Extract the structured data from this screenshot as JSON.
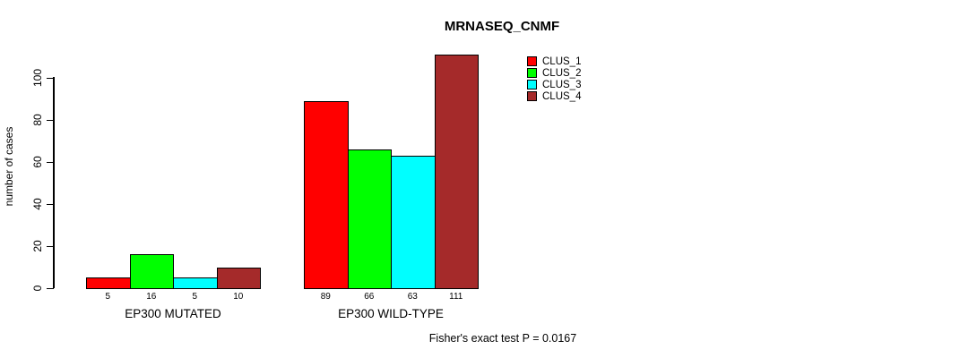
{
  "title": "MRNASEQ_CNMF",
  "ylabel": "number of cases",
  "footnote": "Fisher's exact test P = 0.0167",
  "legend": {
    "position": "top-right",
    "items": [
      {
        "label": "CLUS_1",
        "color": "#FF0000"
      },
      {
        "label": "CLUS_2",
        "color": "#00FF00"
      },
      {
        "label": "CLUS_3",
        "color": "#00FFFF"
      },
      {
        "label": "CLUS_4",
        "color": "#A52A2A"
      }
    ]
  },
  "chart_data": {
    "type": "bar",
    "title": "MRNASEQ_CNMF",
    "xlabel": "",
    "ylabel": "number of cases",
    "categories": [
      "EP300 MUTATED",
      "EP300 WILD-TYPE"
    ],
    "series": [
      {
        "name": "CLUS_1",
        "color": "#FF0000",
        "values": [
          5,
          89
        ]
      },
      {
        "name": "CLUS_2",
        "color": "#00FF00",
        "values": [
          16,
          66
        ]
      },
      {
        "name": "CLUS_3",
        "color": "#00FFFF",
        "values": [
          5,
          63
        ]
      },
      {
        "name": "CLUS_4",
        "color": "#A52A2A",
        "values": [
          10,
          111
        ]
      }
    ],
    "bar_value_labels": [
      [
        5,
        16,
        5,
        10
      ],
      [
        89,
        66,
        63,
        111
      ]
    ],
    "yticks": [
      0,
      20,
      40,
      60,
      80,
      100
    ],
    "ylim": [
      0,
      100
    ],
    "grid": false,
    "legend_position": "top-right",
    "annotation": "Fisher's exact test P = 0.0167"
  }
}
